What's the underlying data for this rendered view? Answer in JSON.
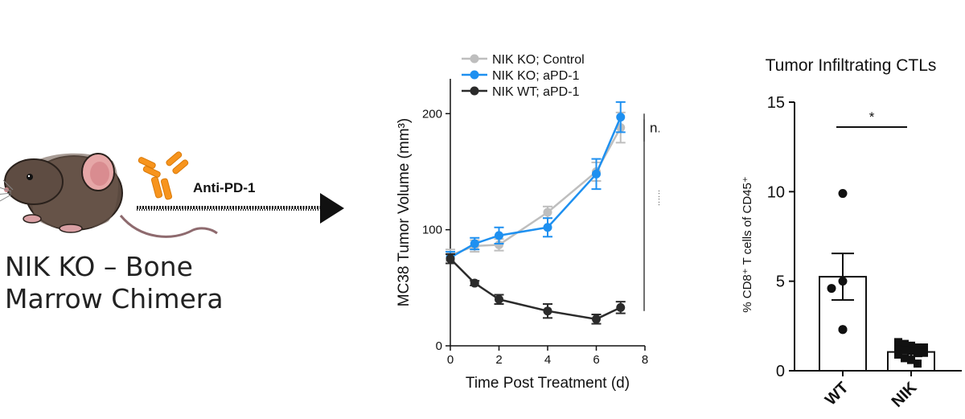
{
  "left_panel": {
    "caption": "NIK KO – Bone\nMarrow Chimera",
    "arrow_label": "Anti-PD-1",
    "antibody_color": "#F7941D",
    "mouse_icon": "mouse-icon",
    "antibody_icon": "antibody-icon"
  },
  "chart_data": [
    {
      "type": "line",
      "xlabel": "Time Post Treatment (d)",
      "ylabel": "MC38 Tumor Volume (mm³)",
      "xlim": [
        0,
        8
      ],
      "ylim": [
        0,
        230
      ],
      "xticks": [
        0,
        2,
        4,
        6,
        8
      ],
      "yticks": [
        0,
        100,
        200
      ],
      "legend_position": "top-left",
      "grid": false,
      "series": [
        {
          "name": "NIK KO; Control",
          "color": "#BEBEBE",
          "x": [
            0,
            1,
            2,
            4,
            6,
            7
          ],
          "y": [
            78,
            86,
            87,
            115,
            150,
            188
          ],
          "err": [
            5,
            5,
            5,
            5,
            8,
            13
          ]
        },
        {
          "name": "NIK KO; aPD-1",
          "color": "#1E90F0",
          "x": [
            0,
            1,
            2,
            4,
            6,
            7
          ],
          "y": [
            76,
            88,
            95,
            102,
            148,
            197
          ],
          "err": [
            5,
            5,
            7,
            8,
            13,
            13
          ]
        },
        {
          "name": "NIK WT; aPD-1",
          "color": "#2B2B2B",
          "x": [
            0,
            1,
            2,
            4,
            6,
            7
          ],
          "y": [
            75,
            54,
            40,
            30,
            23,
            33
          ],
          "err": [
            4,
            2,
            4,
            6,
            4,
            5
          ]
        }
      ],
      "annotations": [
        {
          "text": "n.s.",
          "y_range": [
            176,
            200
          ]
        },
        {
          "text": "***",
          "y_range": [
            30,
            195
          ]
        }
      ]
    },
    {
      "type": "bar",
      "title": "Tumor Infiltrating CTLs",
      "ylabel": "% CD8⁺ T cells of CD45⁺",
      "ylim": [
        0,
        15
      ],
      "yticks": [
        0,
        5,
        10,
        15
      ],
      "categories": [
        "WT",
        "NIK"
      ],
      "values": [
        5.25,
        1.05
      ],
      "sem": [
        1.3,
        0.25
      ],
      "points": [
        [
          9.9,
          5.0,
          4.6,
          2.3,
          2.3
        ],
        [
          1.6,
          1.5,
          1.4,
          1.3,
          1.3,
          1.2,
          1.15,
          1.1,
          1.05,
          1.0,
          0.9,
          0.7,
          0.6,
          0.4
        ]
      ],
      "point_markers": [
        "circle",
        "square"
      ],
      "significance": "*"
    }
  ]
}
